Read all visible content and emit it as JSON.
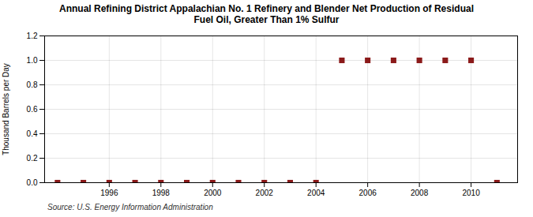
{
  "chart_data": {
    "type": "scatter",
    "title": "Annual Refining District Appalachian No. 1 Refinery and Blender Net Production of Residual\nFuel Oil, Greater Than 1% Sulfur",
    "ylabel": "Thousand Barrels per Day",
    "source": "Source: U.S. Energy Information Administration",
    "x": [
      1994,
      1995,
      1996,
      1997,
      1998,
      1999,
      2000,
      2001,
      2002,
      2003,
      2004,
      2005,
      2006,
      2007,
      2008,
      2009,
      2010,
      2011
    ],
    "values": [
      0.0,
      0.0,
      0.0,
      0.0,
      0.0,
      0.0,
      0.0,
      0.0,
      0.0,
      0.0,
      0.0,
      1.0,
      1.0,
      1.0,
      1.0,
      1.0,
      1.0,
      0.0
    ],
    "color": "#8b1a1a",
    "marker": "square",
    "xlim": [
      1993.5,
      2011.8
    ],
    "xticks": [
      1996,
      1998,
      2000,
      2002,
      2004,
      2006,
      2008,
      2010
    ],
    "ylim": [
      0.0,
      1.2
    ],
    "yticks": [
      {
        "value": 0.0,
        "label": "0.0"
      },
      0.2,
      0.4,
      0.6,
      0.8,
      {
        "value": 1.0,
        "label": "1.0"
      },
      1.2
    ],
    "grid": true
  }
}
